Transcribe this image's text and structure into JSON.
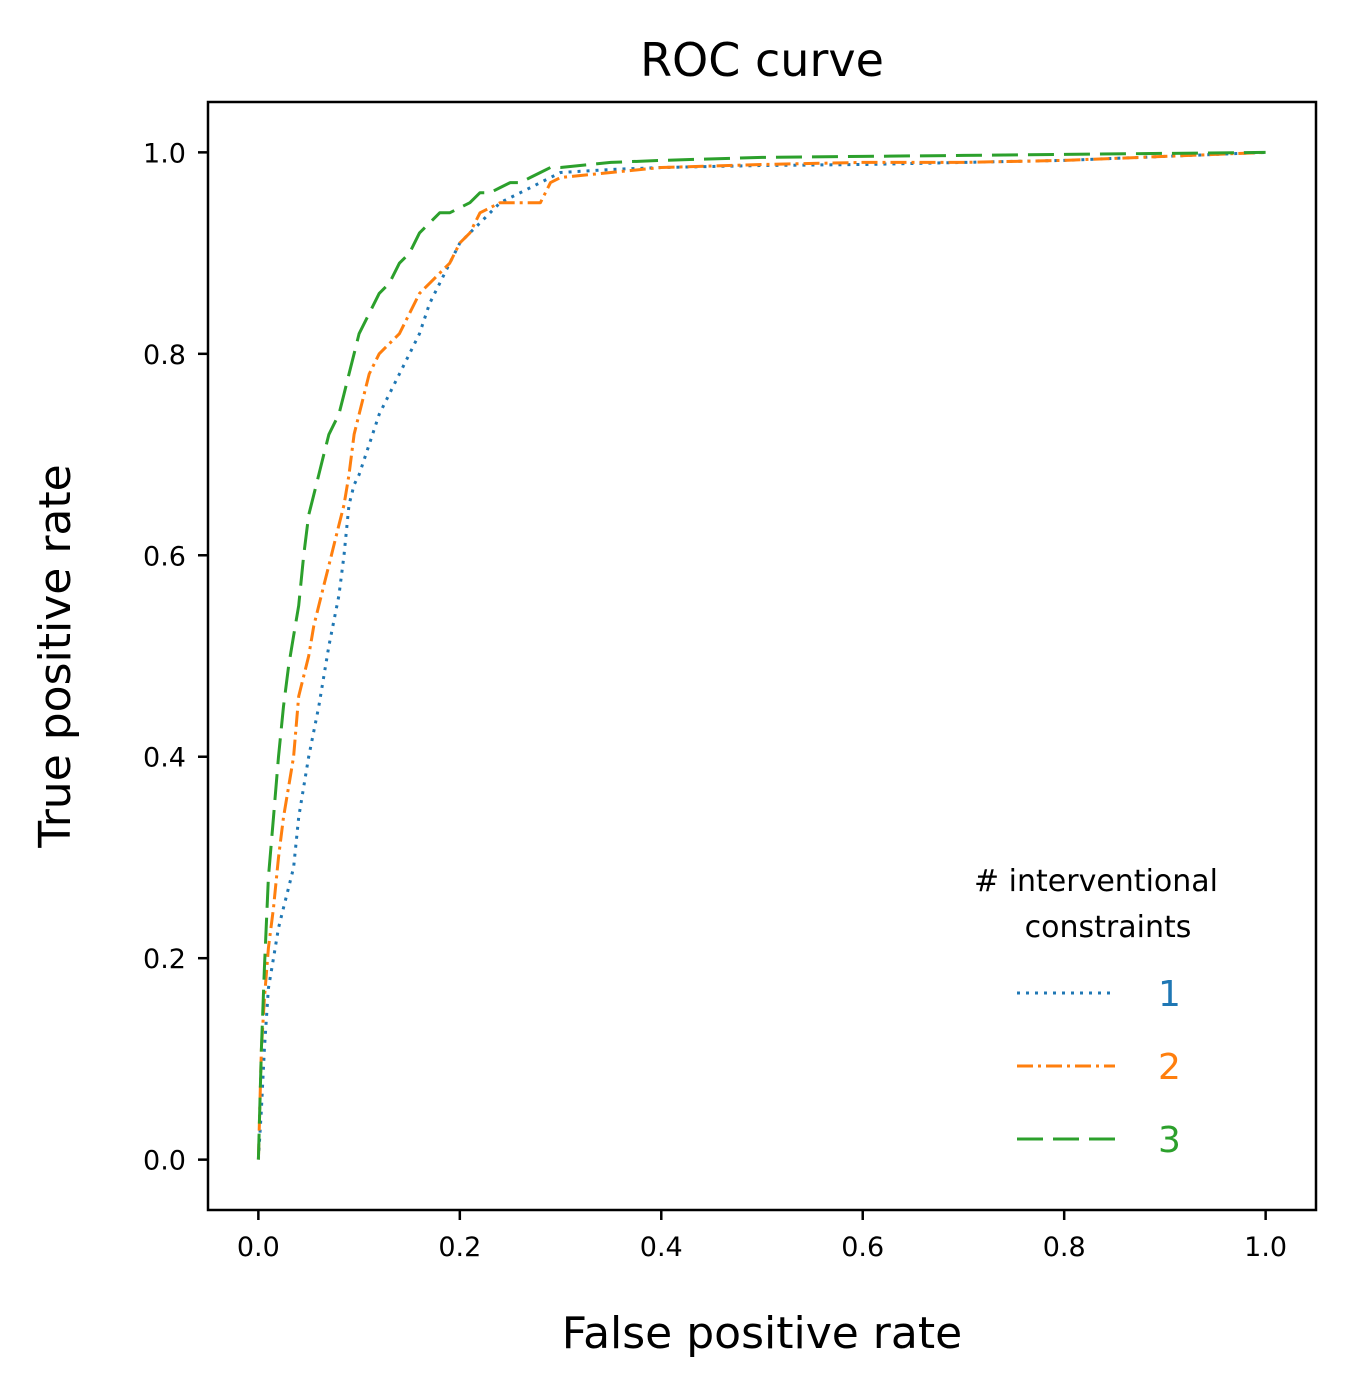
{
  "chart_data": {
    "type": "line",
    "title": "ROC curve",
    "xlabel": "False positive rate",
    "ylabel": "True positive rate",
    "xlim": [
      -0.05,
      1.05
    ],
    "ylim": [
      -0.05,
      1.05
    ],
    "xticks": [
      0.0,
      0.2,
      0.4,
      0.6,
      0.8,
      1.0
    ],
    "xtick_labels": [
      "0.0",
      "0.2",
      "0.4",
      "0.6",
      "0.8",
      "1.0"
    ],
    "yticks": [
      0.0,
      0.2,
      0.4,
      0.6,
      0.8,
      1.0
    ],
    "ytick_labels": [
      "0.0",
      "0.2",
      "0.4",
      "0.6",
      "0.8",
      "1.0"
    ],
    "grid": false,
    "legend": {
      "title": [
        "# interventional",
        "constraints"
      ],
      "placement": "lower-right"
    },
    "series": [
      {
        "name": "1",
        "color": "#1f77b4",
        "style": "dotted",
        "x": [
          0.0,
          0.003,
          0.006,
          0.01,
          0.015,
          0.02,
          0.025,
          0.03,
          0.035,
          0.04,
          0.045,
          0.05,
          0.06,
          0.07,
          0.08,
          0.085,
          0.09,
          0.095,
          0.1,
          0.11,
          0.12,
          0.13,
          0.14,
          0.15,
          0.16,
          0.17,
          0.18,
          0.19,
          0.2,
          0.21,
          0.22,
          0.24,
          0.26,
          0.28,
          0.29,
          0.3,
          0.35,
          0.4,
          0.5,
          0.6,
          0.7,
          0.8,
          0.9,
          1.0
        ],
        "y": [
          0.0,
          0.05,
          0.11,
          0.17,
          0.2,
          0.23,
          0.25,
          0.27,
          0.29,
          0.34,
          0.37,
          0.4,
          0.45,
          0.51,
          0.56,
          0.6,
          0.65,
          0.67,
          0.68,
          0.71,
          0.74,
          0.76,
          0.78,
          0.8,
          0.82,
          0.85,
          0.87,
          0.89,
          0.91,
          0.92,
          0.93,
          0.95,
          0.96,
          0.97,
          0.975,
          0.98,
          0.983,
          0.985,
          0.987,
          0.988,
          0.99,
          0.992,
          0.996,
          1.0
        ]
      },
      {
        "name": "2",
        "color": "#ff7f0e",
        "style": "dashdot",
        "x": [
          0.0,
          0.003,
          0.006,
          0.01,
          0.015,
          0.02,
          0.025,
          0.03,
          0.035,
          0.04,
          0.045,
          0.05,
          0.055,
          0.06,
          0.065,
          0.07,
          0.075,
          0.08,
          0.085,
          0.09,
          0.095,
          0.1,
          0.11,
          0.12,
          0.13,
          0.14,
          0.15,
          0.16,
          0.17,
          0.18,
          0.19,
          0.2,
          0.21,
          0.22,
          0.23,
          0.24,
          0.25,
          0.26,
          0.27,
          0.28,
          0.29,
          0.3,
          0.35,
          0.4,
          0.5,
          0.6,
          0.7,
          0.8,
          0.9,
          1.0
        ],
        "y": [
          0.0,
          0.11,
          0.16,
          0.21,
          0.25,
          0.3,
          0.34,
          0.37,
          0.4,
          0.46,
          0.48,
          0.5,
          0.53,
          0.55,
          0.57,
          0.59,
          0.61,
          0.63,
          0.65,
          0.68,
          0.72,
          0.74,
          0.78,
          0.8,
          0.81,
          0.82,
          0.84,
          0.86,
          0.87,
          0.88,
          0.89,
          0.91,
          0.92,
          0.94,
          0.945,
          0.95,
          0.95,
          0.95,
          0.95,
          0.95,
          0.97,
          0.975,
          0.98,
          0.985,
          0.988,
          0.99,
          0.99,
          0.992,
          0.996,
          1.0
        ]
      },
      {
        "name": "3",
        "color": "#2ca02c",
        "style": "dashed",
        "x": [
          0.0,
          0.003,
          0.006,
          0.01,
          0.015,
          0.02,
          0.025,
          0.03,
          0.035,
          0.04,
          0.045,
          0.05,
          0.055,
          0.06,
          0.065,
          0.07,
          0.075,
          0.08,
          0.085,
          0.09,
          0.095,
          0.1,
          0.11,
          0.12,
          0.13,
          0.14,
          0.15,
          0.16,
          0.17,
          0.18,
          0.19,
          0.2,
          0.21,
          0.22,
          0.23,
          0.24,
          0.25,
          0.26,
          0.27,
          0.28,
          0.29,
          0.3,
          0.35,
          0.4,
          0.5,
          0.6,
          0.7,
          0.8,
          0.9,
          1.0
        ],
        "y": [
          0.0,
          0.11,
          0.19,
          0.28,
          0.34,
          0.4,
          0.45,
          0.49,
          0.52,
          0.55,
          0.6,
          0.64,
          0.66,
          0.68,
          0.7,
          0.72,
          0.73,
          0.74,
          0.76,
          0.78,
          0.8,
          0.82,
          0.84,
          0.86,
          0.87,
          0.89,
          0.9,
          0.92,
          0.93,
          0.94,
          0.94,
          0.945,
          0.95,
          0.96,
          0.96,
          0.965,
          0.97,
          0.97,
          0.975,
          0.98,
          0.985,
          0.985,
          0.99,
          0.992,
          0.995,
          0.996,
          0.997,
          0.998,
          0.999,
          1.0
        ]
      }
    ]
  }
}
